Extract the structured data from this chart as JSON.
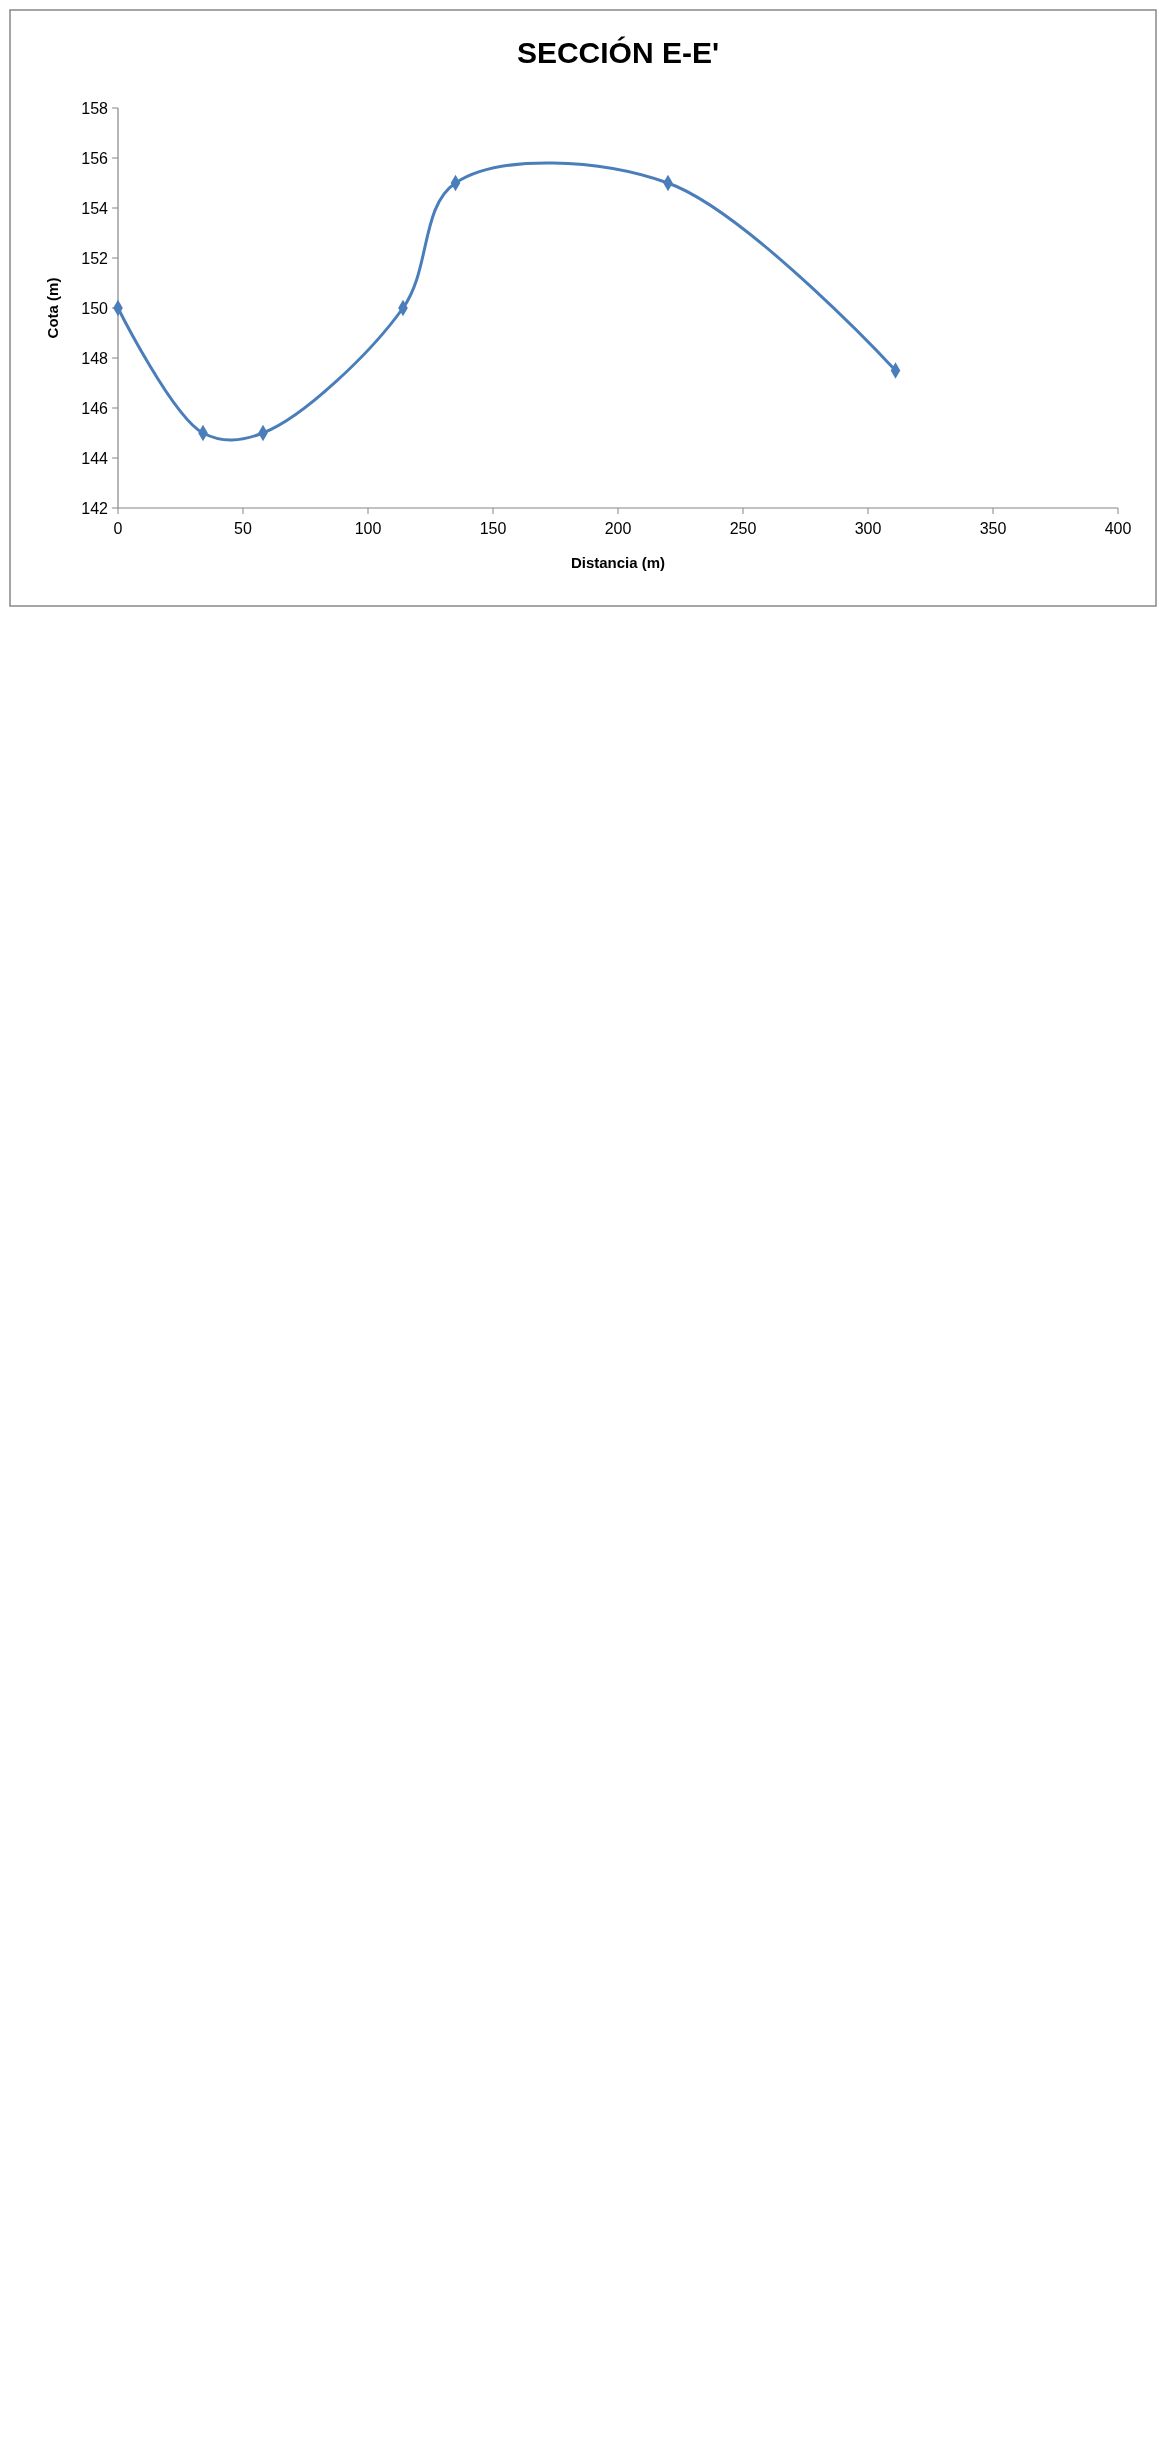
{
  "chart_data": {
    "type": "line",
    "title": "SECCIÓN  E-E'",
    "xlabel": "Distancia (m)",
    "ylabel": "Cota (m)",
    "x": [
      0,
      34,
      58,
      114,
      135,
      220,
      311
    ],
    "series": [
      {
        "color": "#4a7ebb",
        "values": [
          150,
          145,
          145,
          150,
          155,
          155,
          147.5
        ]
      }
    ],
    "xlim": [
      0,
      400
    ],
    "xticks": [
      0,
      50,
      100,
      150,
      200,
      250,
      300,
      350,
      400
    ],
    "ylim": [
      142,
      158
    ],
    "yticks": [
      142,
      144,
      146,
      148,
      150,
      152,
      154,
      156,
      158
    ],
    "marker": "diamond",
    "grid": false
  }
}
